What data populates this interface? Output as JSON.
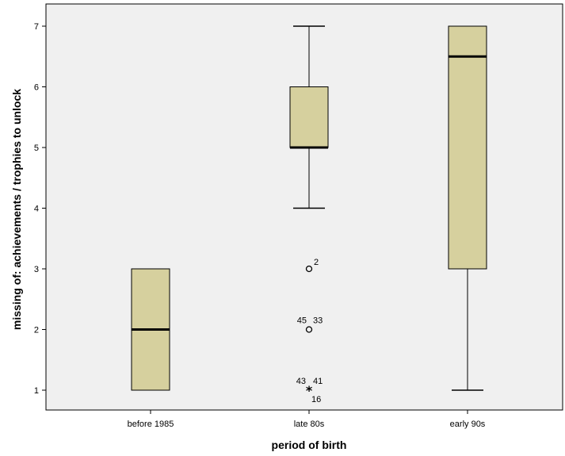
{
  "chart_data": {
    "type": "boxplot",
    "xlabel": "period of birth",
    "ylabel": "missing of: achievements / trophies to unlock",
    "ylim": [
      0.7,
      7.35
    ],
    "yticks": [
      1,
      2,
      3,
      4,
      5,
      6,
      7
    ],
    "grid": false,
    "colors": {
      "box_fill": "#d6d09e",
      "plot_bg": "#f0f0f0",
      "stroke": "#000000"
    },
    "categories": [
      "before 1985",
      "late 80s",
      "early 90s"
    ],
    "boxes": [
      {
        "category": "before 1985",
        "min": 1,
        "q1": 1,
        "median": 2,
        "q3": 3,
        "max": 3,
        "outliers": []
      },
      {
        "category": "late 80s",
        "min": 4,
        "q1": 5,
        "median": 5,
        "q3": 6,
        "max": 7,
        "outliers": [
          {
            "value": 3,
            "marker": "circle",
            "labels": [
              "2"
            ]
          },
          {
            "value": 2,
            "marker": "circle",
            "labels": [
              "45",
              "33"
            ]
          },
          {
            "value": 1,
            "marker": "star",
            "labels": [
              "43",
              "41",
              "16"
            ]
          }
        ]
      },
      {
        "category": "early 90s",
        "min": 1,
        "q1": 3,
        "median": 6.5,
        "q3": 7,
        "max": 7,
        "outliers": []
      }
    ]
  }
}
